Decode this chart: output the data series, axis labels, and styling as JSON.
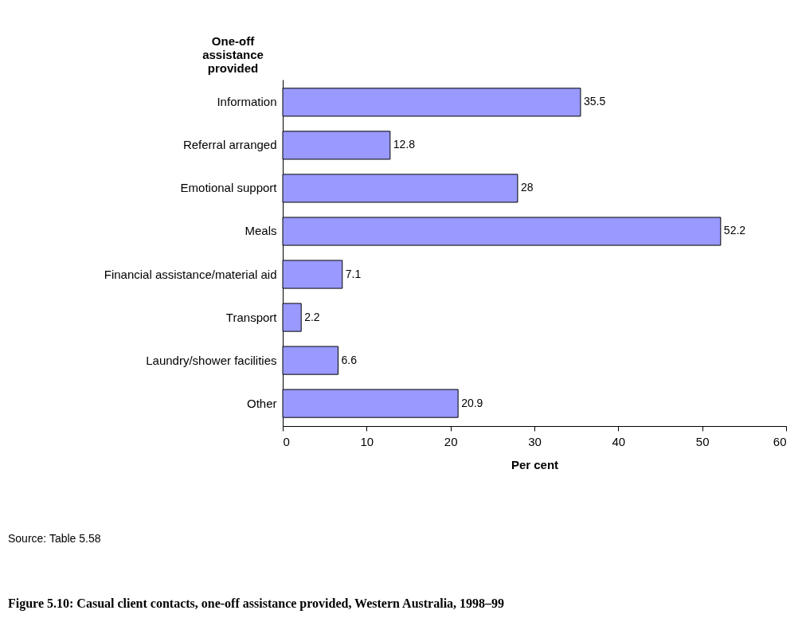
{
  "chart_data": {
    "type": "bar",
    "orientation": "horizontal",
    "title": "Figure 5.10: Casual client contacts, one-off assistance provided, Western Australia, 1998–99",
    "xlabel": "Per cent",
    "ylabel": "One-off assistance provided",
    "categories": [
      "Information",
      "Referral arranged",
      "Emotional support",
      "Meals",
      "Financial assistance/material aid",
      "Transport",
      "Laundry/shower facilities",
      "Other"
    ],
    "values": [
      35.5,
      12.8,
      28,
      52.2,
      7.1,
      2.2,
      6.6,
      20.9
    ],
    "color": "#9999ff",
    "xlim": [
      0,
      60
    ],
    "xticks": [
      0,
      10,
      20,
      30,
      40,
      50,
      60
    ],
    "grid": false,
    "data_labels": true,
    "annotations": [
      "Source: Table 5.58"
    ]
  }
}
